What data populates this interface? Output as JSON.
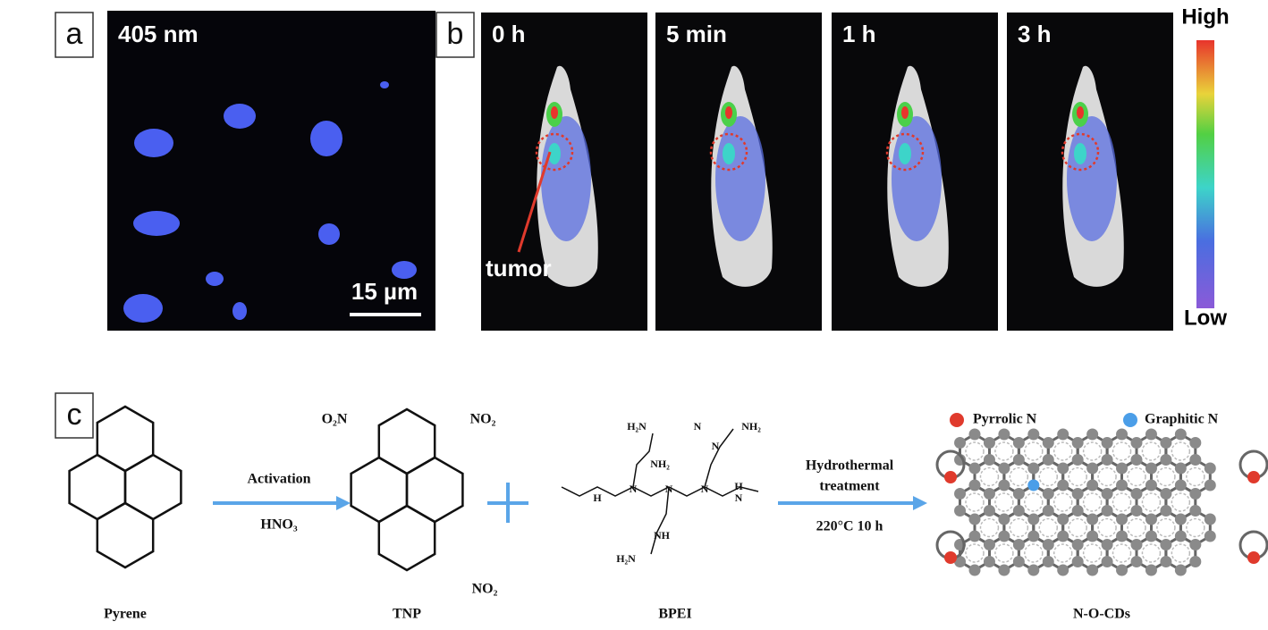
{
  "panel_a": {
    "label": "a",
    "wavelength": "405 nm",
    "scale_bar": "15 µm"
  },
  "panel_b": {
    "label": "b",
    "times": [
      "0 h",
      "5 min",
      "1 h",
      "3 h"
    ],
    "annotation": "tumor",
    "colorbar_high": "High",
    "colorbar_low": "Low"
  },
  "panel_c": {
    "label": "c",
    "pyrene": "Pyrene",
    "step1": {
      "top": "Activation",
      "bottom": "HNO₃"
    },
    "tnp": {
      "name": "TNP",
      "groups": [
        "O₂N",
        "NO₂",
        "NO₂"
      ]
    },
    "bpei": {
      "name": "BPEI",
      "groups": [
        "NH₂",
        "H₂N",
        "NH₂",
        "N",
        "N",
        "N",
        "N",
        "H",
        "N",
        "N",
        "H",
        "NH",
        "H₂N"
      ]
    },
    "step2": {
      "top": "Hydrothermal",
      "middle": "treatment",
      "bottom": "220°C 10 h"
    },
    "legend": [
      "Pyrrolic N",
      "Graphitic N"
    ],
    "product": "N-O-CDs"
  }
}
